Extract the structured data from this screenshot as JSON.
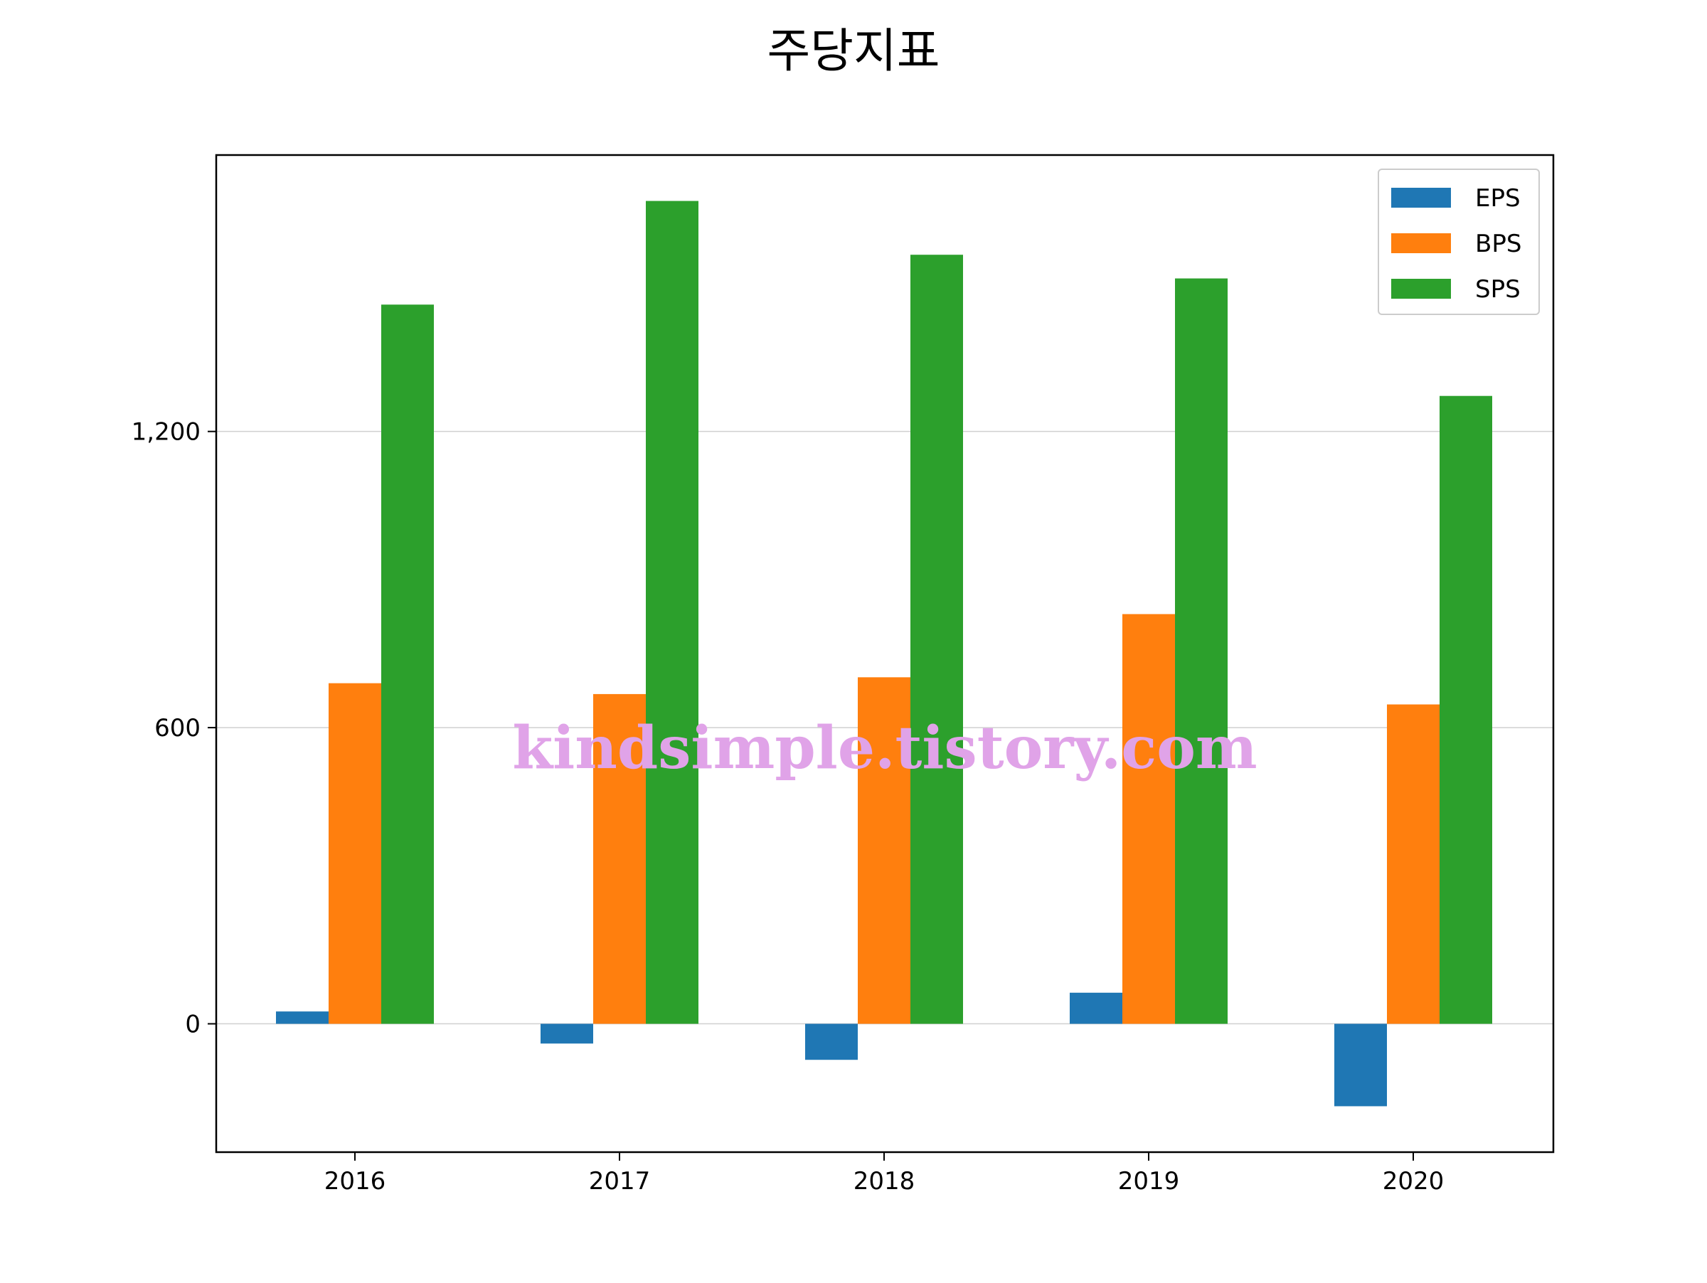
{
  "chart_data": {
    "type": "bar",
    "title": "주당지표",
    "xlabel": "",
    "ylabel": "",
    "categories": [
      "2016",
      "2017",
      "2018",
      "2019",
      "2020"
    ],
    "series": [
      {
        "name": "EPS",
        "color": "#1f77b4",
        "values": [
          25,
          -40,
          -73,
          63,
          -167
        ]
      },
      {
        "name": "BPS",
        "color": "#ff7f0e",
        "values": [
          690,
          668,
          702,
          830,
          647
        ]
      },
      {
        "name": "SPS",
        "color": "#2ca02c",
        "values": [
          1457,
          1667,
          1558,
          1510,
          1272
        ]
      }
    ],
    "ylim": [
      -260,
      1760
    ],
    "yticks": [
      {
        "value": 0,
        "label": "0"
      },
      {
        "value": 600,
        "label": "600"
      },
      {
        "value": 1200,
        "label": "1,200"
      }
    ],
    "grid": "horizontal",
    "legend_position": "top-right"
  },
  "watermark": {
    "text": "kindsimple.tistory.com",
    "color": "#e0a3e8"
  }
}
